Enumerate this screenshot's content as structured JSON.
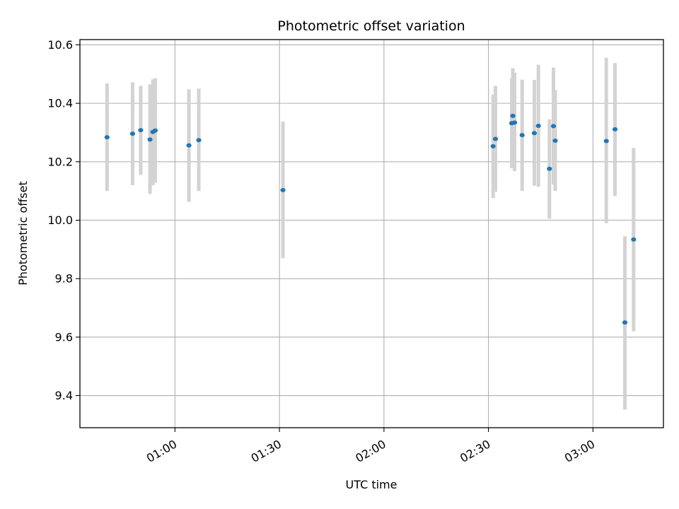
{
  "chart_data": {
    "type": "scatter",
    "title": "Photometric offset variation",
    "xlabel": "UTC time",
    "ylabel": "Photometric offset",
    "x_unit": "UTC time (HH:MM)",
    "xlim": [
      "00:32:43",
      "03:20:14"
    ],
    "ylim": [
      9.29,
      10.618
    ],
    "xticks": [
      "01:00",
      "01:30",
      "02:00",
      "02:30",
      "03:00"
    ],
    "yticks": [
      9.4,
      9.6,
      9.8,
      10.0,
      10.2,
      10.4,
      10.6
    ],
    "ytick_labels": [
      "9.4",
      "9.6",
      "9.8",
      "10.0",
      "10.2",
      "10.4",
      "10.6"
    ],
    "grid": true,
    "colors": {
      "marker": "#1f77b4",
      "errorbar": "#d3d3d3",
      "grid": "#b0b0b0",
      "axes": "#000000"
    },
    "series": [
      {
        "marker": "dot",
        "points": [
          {
            "x": "00:40:30",
            "y": 10.284,
            "ylo": 10.1,
            "yhi": 10.468
          },
          {
            "x": "00:47:50",
            "y": 10.296,
            "ylo": 10.12,
            "yhi": 10.472
          },
          {
            "x": "00:50:10",
            "y": 10.308,
            "ylo": 10.155,
            "yhi": 10.46
          },
          {
            "x": "00:52:50",
            "y": 10.276,
            "ylo": 10.09,
            "yhi": 10.465
          },
          {
            "x": "00:53:40",
            "y": 10.302,
            "ylo": 10.12,
            "yhi": 10.482
          },
          {
            "x": "00:54:20",
            "y": 10.307,
            "ylo": 10.128,
            "yhi": 10.486
          },
          {
            "x": "01:04:00",
            "y": 10.256,
            "ylo": 10.063,
            "yhi": 10.448
          },
          {
            "x": "01:06:50",
            "y": 10.274,
            "ylo": 10.1,
            "yhi": 10.45
          },
          {
            "x": "01:31:00",
            "y": 10.103,
            "ylo": 9.87,
            "yhi": 10.337
          },
          {
            "x": "02:31:20",
            "y": 10.253,
            "ylo": 10.076,
            "yhi": 10.43
          },
          {
            "x": "02:32:00",
            "y": 10.278,
            "ylo": 10.097,
            "yhi": 10.46
          },
          {
            "x": "02:36:40",
            "y": 10.332,
            "ylo": 10.178,
            "yhi": 10.486
          },
          {
            "x": "02:37:00",
            "y": 10.357,
            "ylo": 10.185,
            "yhi": 10.52
          },
          {
            "x": "02:37:30",
            "y": 10.334,
            "ylo": 10.168,
            "yhi": 10.505
          },
          {
            "x": "02:39:40",
            "y": 10.291,
            "ylo": 10.1,
            "yhi": 10.481
          },
          {
            "x": "02:43:10",
            "y": 10.298,
            "ylo": 10.118,
            "yhi": 10.48
          },
          {
            "x": "02:44:20",
            "y": 10.323,
            "ylo": 10.115,
            "yhi": 10.532
          },
          {
            "x": "02:47:30",
            "y": 10.176,
            "ylo": 10.005,
            "yhi": 10.345
          },
          {
            "x": "02:48:40",
            "y": 10.322,
            "ylo": 10.122,
            "yhi": 10.522
          },
          {
            "x": "02:49:10",
            "y": 10.272,
            "ylo": 10.1,
            "yhi": 10.445
          },
          {
            "x": "03:03:50",
            "y": 10.271,
            "ylo": 9.99,
            "yhi": 10.556
          },
          {
            "x": "03:06:20",
            "y": 10.311,
            "ylo": 10.083,
            "yhi": 10.538
          },
          {
            "x": "03:09:10",
            "y": 9.65,
            "ylo": 9.352,
            "yhi": 9.945
          },
          {
            "x": "03:11:40",
            "y": 9.934,
            "ylo": 9.62,
            "yhi": 10.247
          }
        ]
      }
    ]
  }
}
